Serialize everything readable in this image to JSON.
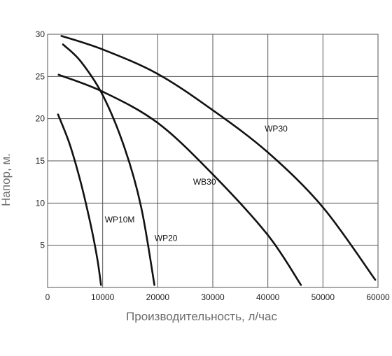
{
  "chart_data": {
    "type": "line",
    "title": "",
    "xlabel": "Производительность, л/час",
    "ylabel": "Напор, м.",
    "xlim": [
      0,
      60000
    ],
    "ylim": [
      0,
      30
    ],
    "x_ticks": [
      "0",
      "10000",
      "20000",
      "30000",
      "40000",
      "50000",
      "60000"
    ],
    "y_ticks": [
      "5",
      "10",
      "15",
      "20",
      "25",
      "30"
    ],
    "x_tick_values": [
      0,
      10000,
      20000,
      30000,
      40000,
      50000,
      60000
    ],
    "y_tick_values": [
      5,
      10,
      15,
      20,
      25,
      30
    ],
    "grid": true,
    "legend": "none",
    "series": [
      {
        "name": "WP30",
        "x": [
          2500,
          10000,
          20000,
          30000,
          40000,
          50000,
          59500
        ],
        "y": [
          29.8,
          28.2,
          25.3,
          21.0,
          16.0,
          9.5,
          0.9
        ]
      },
      {
        "name": "WB30",
        "x": [
          2000,
          10000,
          20000,
          30000,
          40000,
          46000
        ],
        "y": [
          25.2,
          23.2,
          19.5,
          13.4,
          6.2,
          0.3
        ]
      },
      {
        "name": "WP20",
        "x": [
          2800,
          6000,
          10000,
          14000,
          17000,
          19400
        ],
        "y": [
          28.8,
          26.8,
          22.8,
          16.5,
          9.5,
          0.3
        ]
      },
      {
        "name": "WP10M",
        "x": [
          1900,
          4000,
          6000,
          7800,
          9000,
          9700
        ],
        "y": [
          20.5,
          17.0,
          12.5,
          7.5,
          3.5,
          0.3
        ]
      }
    ]
  }
}
